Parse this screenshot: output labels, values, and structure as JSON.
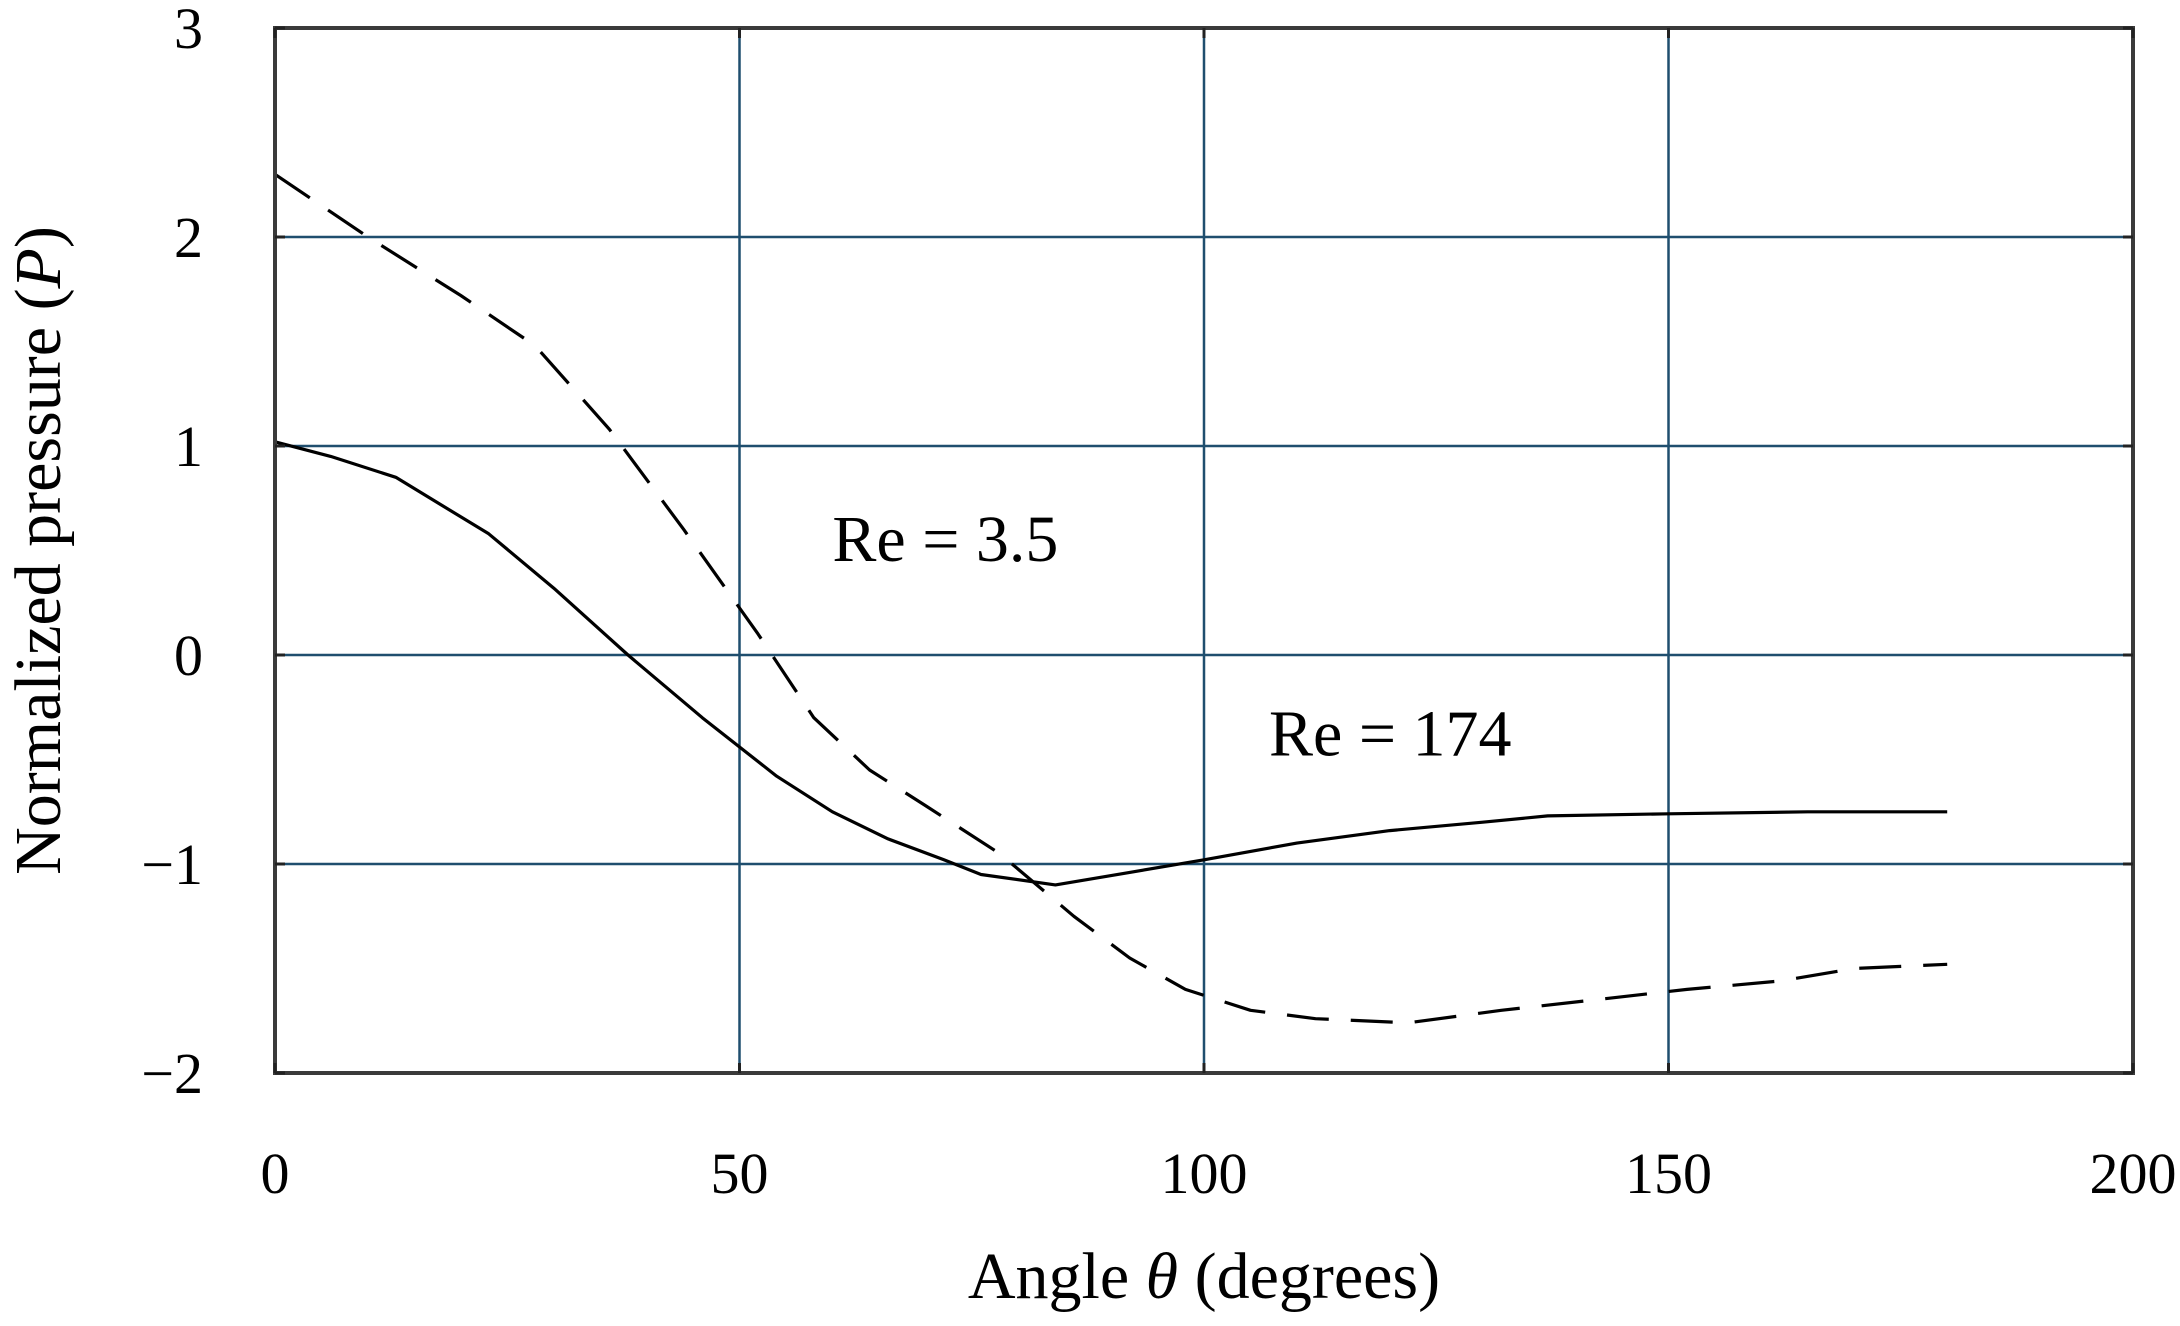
{
  "chart_data": {
    "type": "line",
    "title": "",
    "xlabel_parts": [
      "Angle ",
      "θ",
      " (degrees)"
    ],
    "ylabel_parts": [
      "Normalized pressure (",
      "P",
      ")"
    ],
    "xlim": [
      0,
      200
    ],
    "ylim": [
      -2,
      3
    ],
    "xticks": [
      0,
      50,
      100,
      150,
      200
    ],
    "xtick_labels": [
      "0",
      "50",
      "100",
      "150",
      "200"
    ],
    "yticks": [
      -2,
      -1,
      0,
      1,
      2,
      3
    ],
    "ytick_labels": [
      "−2",
      "−1",
      "0",
      "1",
      "2",
      "3"
    ],
    "grid": true,
    "series": [
      {
        "name": "Re = 3.5",
        "style": "dashed",
        "color": "#000000",
        "x": [
          0,
          10,
          20,
          28,
          36,
          44,
          52,
          58,
          64,
          70,
          78,
          86,
          92,
          98,
          105,
          112,
          122,
          132,
          142,
          152,
          162,
          170,
          180
        ],
        "y": [
          2.3,
          2.0,
          1.72,
          1.48,
          1.08,
          0.6,
          0.1,
          -0.3,
          -0.55,
          -0.72,
          -0.95,
          -1.25,
          -1.45,
          -1.6,
          -1.7,
          -1.74,
          -1.76,
          -1.7,
          -1.65,
          -1.6,
          -1.56,
          -1.5,
          -1.48
        ]
      },
      {
        "name": "Re = 174",
        "style": "solid",
        "color": "#000000",
        "x": [
          0,
          6,
          13,
          23,
          30,
          38,
          46,
          54,
          60,
          66,
          72,
          76,
          84,
          92,
          100,
          110,
          120,
          130,
          137,
          150,
          165,
          180
        ],
        "y": [
          1.02,
          0.95,
          0.85,
          0.58,
          0.32,
          0.0,
          -0.3,
          -0.58,
          -0.75,
          -0.88,
          -0.98,
          -1.05,
          -1.1,
          -1.04,
          -0.98,
          -0.9,
          -0.84,
          -0.8,
          -0.77,
          -0.76,
          -0.75,
          -0.75
        ]
      }
    ],
    "annotations": [
      {
        "text": "Re = 3.5",
        "x": 60,
        "y": 0.45
      },
      {
        "text": "Re = 174",
        "x": 107,
        "y": -0.48
      }
    ]
  }
}
